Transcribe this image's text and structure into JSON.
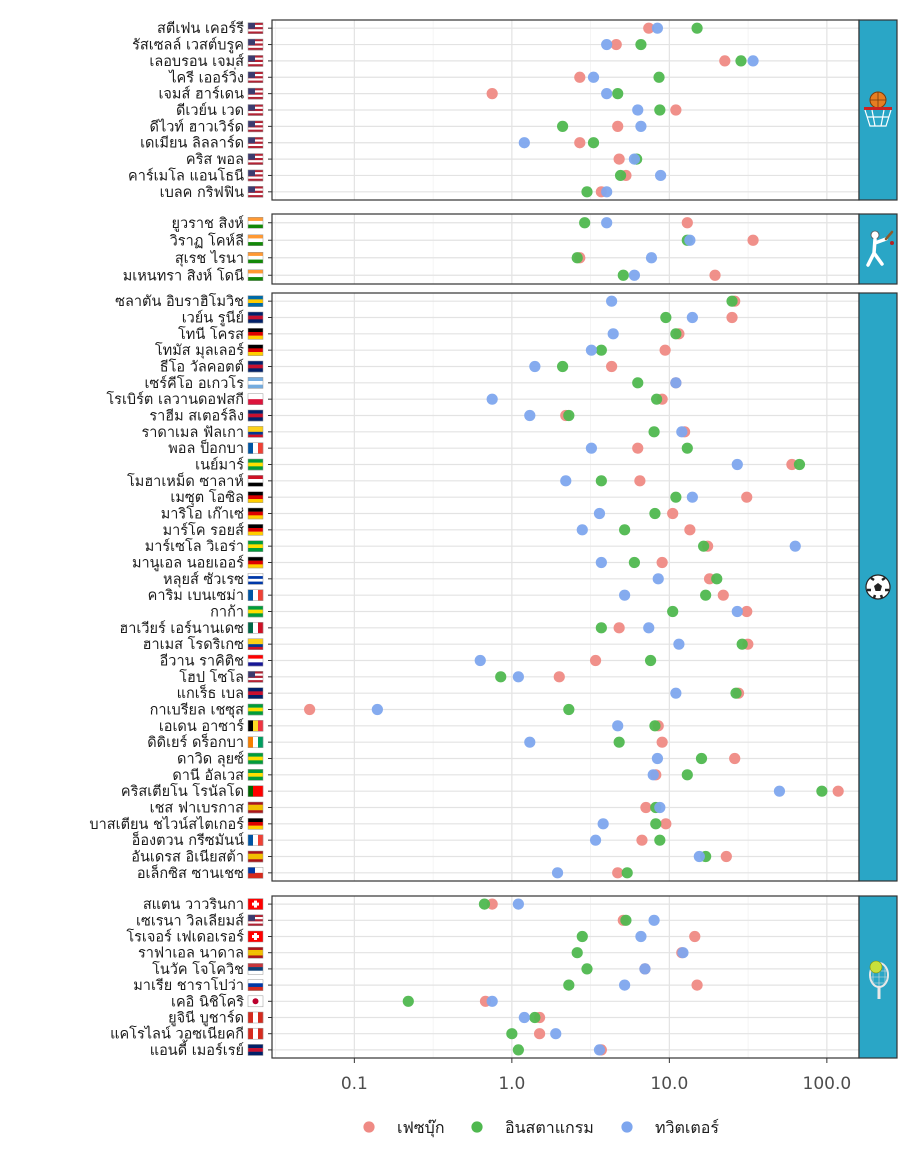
{
  "chart_data": {
    "type": "scatter",
    "xscale": "log10",
    "xlim": [
      0.03,
      160
    ],
    "x_ticks": [
      "0.1",
      "1.0",
      "10.0",
      "100.0"
    ],
    "x_tick_values": [
      0.1,
      1,
      10,
      100
    ],
    "grid": true,
    "legend_position": "bottom",
    "colors": {
      "facebook": "#ef8a84",
      "instagram": "#4fb84f",
      "twitter": "#7ea6ee",
      "strip": "#2aa6c6"
    },
    "series": [
      {
        "key": "facebook",
        "name": "เฟซบุ๊ก"
      },
      {
        "key": "instagram",
        "name": "อินสตาแกรม"
      },
      {
        "key": "twitter",
        "name": "ทวิตเตอร์"
      }
    ],
    "panels": [
      {
        "sport": "basketball",
        "icon": "basketball-hoop-icon",
        "athletes": [
          {
            "name": "สตีเฟน เคอร์รี",
            "flag": "usa",
            "facebook": 7.4,
            "instagram": 15,
            "twitter": 8.4
          },
          {
            "name": "รัสเซลล์ เวสต์บรูค",
            "flag": "usa",
            "facebook": 4.6,
            "instagram": 6.6,
            "twitter": 4.0
          },
          {
            "name": "เลอบรอน เจมส์",
            "flag": "usa",
            "facebook": 22.5,
            "instagram": 28.5,
            "twitter": 34
          },
          {
            "name": "ไครี เออร์วิ่ง",
            "flag": "usa",
            "facebook": 2.7,
            "instagram": 8.6,
            "twitter": 3.3
          },
          {
            "name": "เจมส์ ฮาร์เดน",
            "flag": "usa",
            "facebook": 0.75,
            "instagram": 4.7,
            "twitter": 4.0
          },
          {
            "name": "ดีเวย์น เวด",
            "flag": "usa",
            "facebook": 11,
            "instagram": 8.7,
            "twitter": 6.3
          },
          {
            "name": "ดีไวท์ ฮาวเวิร์ด",
            "flag": "usa",
            "facebook": 4.7,
            "instagram": 2.1,
            "twitter": 6.6
          },
          {
            "name": "เดเมียน ลิลลาร์ด",
            "flag": "usa",
            "facebook": 2.7,
            "instagram": 3.3,
            "twitter": 1.2
          },
          {
            "name": "คริส พอล",
            "flag": "usa",
            "facebook": 4.8,
            "instagram": 6.2,
            "twitter": 6.0
          },
          {
            "name": "คาร์เมโล แอนโธนี",
            "flag": "usa",
            "facebook": 5.3,
            "instagram": 4.9,
            "twitter": 8.8
          },
          {
            "name": "เบลค กริฟฟิน",
            "flag": "usa",
            "facebook": 3.7,
            "instagram": 3.0,
            "twitter": 4.0
          }
        ]
      },
      {
        "sport": "cricket",
        "icon": "cricket-player-icon",
        "athletes": [
          {
            "name": "ยูวราช สิงห์",
            "flag": "india",
            "facebook": 13,
            "instagram": 2.9,
            "twitter": 4.0
          },
          {
            "name": "วิราฏ โคห์ลี",
            "flag": "india",
            "facebook": 34,
            "instagram": 13,
            "twitter": 13.5
          },
          {
            "name": "สุเรช ไรนา",
            "flag": "india",
            "facebook": 2.7,
            "instagram": 2.6,
            "twitter": 7.7
          },
          {
            "name": "มเหนทรา สิงห์ โดนี",
            "flag": "india",
            "facebook": 19.5,
            "instagram": 5.1,
            "twitter": 6.0
          }
        ]
      },
      {
        "sport": "soccer",
        "icon": "soccer-ball-icon",
        "athletes": [
          {
            "name": "ซลาตัน อิบราฮิโมวิช",
            "flag": "sweden",
            "facebook": 26,
            "instagram": 25,
            "twitter": 4.3
          },
          {
            "name": "เวย์น รูนีย์",
            "flag": "uk",
            "facebook": 25,
            "instagram": 9.5,
            "twitter": 14
          },
          {
            "name": "โทนี โครส",
            "flag": "germany",
            "facebook": 11.5,
            "instagram": 11,
            "twitter": 4.4
          },
          {
            "name": "โทมัส มุลเลอร์",
            "flag": "germany",
            "facebook": 9.4,
            "instagram": 3.7,
            "twitter": 3.2
          },
          {
            "name": "ธีโอ วัลคอตต์",
            "flag": "uk",
            "facebook": 4.3,
            "instagram": 2.1,
            "twitter": 1.4
          },
          {
            "name": "เซร์คีโอ อเกวโร",
            "flag": "argentina",
            "facebook": 11,
            "instagram": 6.3,
            "twitter": 11
          },
          {
            "name": "โรเบิร์ต เลวานดอฟสกี",
            "flag": "poland",
            "facebook": 9.0,
            "instagram": 8.3,
            "twitter": 0.75
          },
          {
            "name": "ราฮีม สเตอร์ลิง",
            "flag": "uk",
            "facebook": 2.2,
            "instagram": 2.3,
            "twitter": 1.3
          },
          {
            "name": "ราดาเมล ฟัลเกา",
            "flag": "colombia",
            "facebook": 12.5,
            "instagram": 8.0,
            "twitter": 12
          },
          {
            "name": "พอล ป็อกบา",
            "flag": "france",
            "facebook": 6.3,
            "instagram": 13,
            "twitter": 3.2
          },
          {
            "name": "เนย์มาร์",
            "flag": "brazil",
            "facebook": 60,
            "instagram": 67,
            "twitter": 27
          },
          {
            "name": "โมฮาเหม็ด ซาลาห์",
            "flag": "egypt",
            "facebook": 6.5,
            "instagram": 3.7,
            "twitter": 2.2
          },
          {
            "name": "เมซุต โอซิล",
            "flag": "germany",
            "facebook": 31,
            "instagram": 11,
            "twitter": 14
          },
          {
            "name": "มาริโอ เก๊าเซ่",
            "flag": "germany",
            "facebook": 10.5,
            "instagram": 8.1,
            "twitter": 3.6
          },
          {
            "name": "มาร์โค รอยส์",
            "flag": "germany",
            "facebook": 13.5,
            "instagram": 5.2,
            "twitter": 2.8
          },
          {
            "name": "มาร์เซโล วิเอร่า",
            "flag": "brazil",
            "facebook": 17.5,
            "instagram": 16.5,
            "twitter": 63
          },
          {
            "name": "มานูเอล นอยเออร์",
            "flag": "germany",
            "facebook": 9.0,
            "instagram": 6.0,
            "twitter": 3.7
          },
          {
            "name": "หลุยส์ ซัวเรซ",
            "flag": "uruguay",
            "facebook": 18,
            "instagram": 20,
            "twitter": 8.5
          },
          {
            "name": "คาริม เบนเซม่า",
            "flag": "france",
            "facebook": 22,
            "instagram": 17,
            "twitter": 5.2
          },
          {
            "name": "กาก้า",
            "flag": "brazil",
            "facebook": 31,
            "instagram": 10.5,
            "twitter": 27
          },
          {
            "name": "ฮาเวียร์ เอร์นานเดซ",
            "flag": "mexico",
            "facebook": 4.8,
            "instagram": 3.7,
            "twitter": 7.4
          },
          {
            "name": "ฮาเมส โรดริเกซ",
            "flag": "colombia",
            "facebook": 31.5,
            "instagram": 29,
            "twitter": 11.5
          },
          {
            "name": "อีวาน ราคิติช",
            "flag": "croatia",
            "facebook": 3.4,
            "instagram": 7.6,
            "twitter": 0.63
          },
          {
            "name": "โฮป โซโล",
            "flag": "usa",
            "facebook": 2.0,
            "instagram": 0.85,
            "twitter": 1.1
          },
          {
            "name": "แกเร็ธ เบล",
            "flag": "uk",
            "facebook": 27.5,
            "instagram": 26.5,
            "twitter": 11
          },
          {
            "name": "กาเบรียล เชซุส",
            "flag": "brazil",
            "facebook": 0.052,
            "instagram": 2.3,
            "twitter": 0.14
          },
          {
            "name": "เอเดน อาซาร์",
            "flag": "belgium",
            "facebook": 8.5,
            "instagram": 8.1,
            "twitter": 4.7
          },
          {
            "name": "ดิดิเยร์ ดร็อกบา",
            "flag": "ivory-coast",
            "facebook": 9.0,
            "instagram": 4.8,
            "twitter": 1.3
          },
          {
            "name": "ดาวิด ลุยซ์",
            "flag": "brazil",
            "facebook": 26,
            "instagram": 16,
            "twitter": 8.4
          },
          {
            "name": "ดานี อัลเวส",
            "flag": "brazil",
            "facebook": 8.2,
            "instagram": 13,
            "twitter": 7.9
          },
          {
            "name": "คริสเตียโน โรนัลโด",
            "flag": "portugal",
            "facebook": 118,
            "instagram": 93,
            "twitter": 50
          },
          {
            "name": "เชส ฟาเบรกาส",
            "flag": "spain",
            "facebook": 7.1,
            "instagram": 8.2,
            "twitter": 8.7
          },
          {
            "name": "บาสเตียน ชไวน์สไตเกอร์",
            "flag": "germany",
            "facebook": 9.5,
            "instagram": 8.2,
            "twitter": 3.8
          },
          {
            "name": "อ็องตวน กรีซมันน์",
            "flag": "france",
            "facebook": 6.7,
            "instagram": 8.7,
            "twitter": 3.4
          },
          {
            "name": "อันเดรส อิเนียสต้า",
            "flag": "spain",
            "facebook": 23,
            "instagram": 17,
            "twitter": 15.5
          },
          {
            "name": "อเล็กซิส ซานเชซ",
            "flag": "chile",
            "facebook": 4.7,
            "instagram": 5.4,
            "twitter": 1.95
          }
        ]
      },
      {
        "sport": "tennis",
        "icon": "tennis-racket-icon",
        "athletes": [
          {
            "name": "สแตน วาวรินกา",
            "flag": "switzerland",
            "facebook": 0.75,
            "instagram": 0.67,
            "twitter": 1.1
          },
          {
            "name": "เซเรนา วิลเลียมส์",
            "flag": "usa",
            "facebook": 5.1,
            "instagram": 5.3,
            "twitter": 8.0
          },
          {
            "name": "โรเจอร์ เฟเดอเรอร์",
            "flag": "switzerland",
            "facebook": 14.5,
            "instagram": 2.8,
            "twitter": 6.6
          },
          {
            "name": "ราฟาเอล นาดาล",
            "flag": "spain",
            "facebook": 12,
            "instagram": 2.6,
            "twitter": 12.2
          },
          {
            "name": "โนวัค โจโควิช",
            "flag": "serbia",
            "facebook": 7.0,
            "instagram": 3.0,
            "twitter": 7.0
          },
          {
            "name": "มาเรีย ชาราโปว่า",
            "flag": "russia",
            "facebook": 15,
            "instagram": 2.3,
            "twitter": 5.2
          },
          {
            "name": "เคอิ นิชิโคริ",
            "flag": "japan",
            "facebook": 0.68,
            "instagram": 0.22,
            "twitter": 0.75
          },
          {
            "name": "ยูจินี บูชาร์ด",
            "flag": "canada",
            "facebook": 1.5,
            "instagram": 1.4,
            "twitter": 1.2
          },
          {
            "name": "แคโรไลน์ วอซเนียคกี",
            "flag": "canada",
            "facebook": 1.5,
            "instagram": 1.0,
            "twitter": 1.9
          },
          {
            "name": "แอนดี้ เมอร์เรย์",
            "flag": "uk",
            "facebook": 3.7,
            "instagram": 1.1,
            "twitter": 3.6
          }
        ]
      }
    ]
  }
}
